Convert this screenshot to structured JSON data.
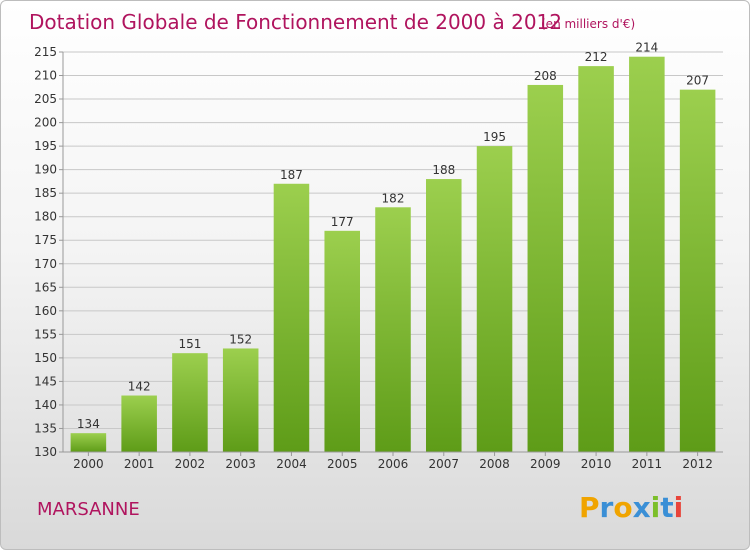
{
  "chart_data": {
    "type": "bar",
    "title": "Dotation Globale de Fonctionnement de 2000 à 2012",
    "subtitle": "(en milliers d'€)",
    "categories": [
      "2000",
      "2001",
      "2002",
      "2003",
      "2004",
      "2005",
      "2006",
      "2007",
      "2008",
      "2009",
      "2010",
      "2011",
      "2012"
    ],
    "values": [
      134,
      142,
      151,
      152,
      187,
      177,
      182,
      188,
      195,
      208,
      212,
      214,
      207
    ],
    "ylim": [
      130,
      215
    ],
    "yticks": [
      130,
      135,
      140,
      145,
      150,
      155,
      160,
      165,
      170,
      175,
      180,
      185,
      190,
      195,
      200,
      205,
      210,
      215
    ],
    "grid": true,
    "legend": "none",
    "bar_color_top": "#9ccf4e",
    "bar_color_bottom": "#5e9c18"
  },
  "commune": "MARSANNE",
  "logo": {
    "letters": [
      "P",
      "r",
      "o",
      "x",
      "i",
      "t",
      "i"
    ],
    "colors": [
      "#f0a400",
      "#3a8fd6",
      "#f0a400",
      "#3a8fd6",
      "#7cbf2a",
      "#3a8fd6",
      "#e8443a"
    ]
  }
}
